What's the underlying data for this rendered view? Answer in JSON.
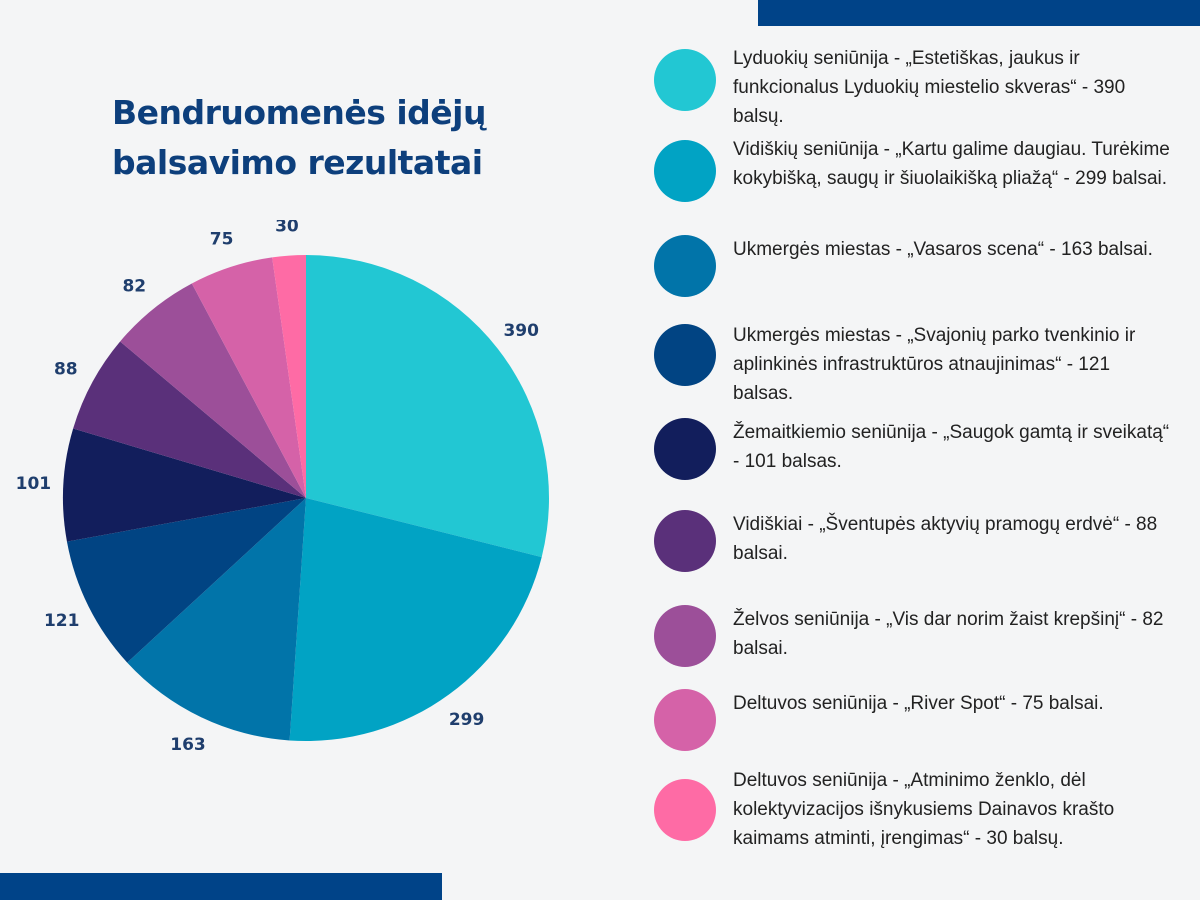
{
  "title": "Bendruomenės idėjų balsavimo rezultatai",
  "chart_data": {
    "type": "pie",
    "title": "Bendruomenės idėjų balsavimo rezultatai",
    "start_angle": "12 o'clock, clockwise",
    "slices": [
      {
        "value": 390,
        "label": "390",
        "color": "#22c7d3",
        "legend": "Lyduokių seniūnija - „Estetiškas, jaukus ir funkcionalus Lyduokių miestelio skveras“ - 390 balsų."
      },
      {
        "value": 299,
        "label": "299",
        "color": "#01a3c4",
        "legend": "Vidiškių seniūnija - „Kartu galime daugiau. Turėkime kokybišką, saugų ir šiuolaikišką pliažą“ - 299 balsai."
      },
      {
        "value": 163,
        "label": "163",
        "color": "#0174a9",
        "legend": "Ukmergės miestas - „Vasaros scena“ - 163 balsai."
      },
      {
        "value": 121,
        "label": "121",
        "color": "#014483",
        "legend": "Ukmergės miestas - „Svajonių parko tvenkinio ir aplinkinės infrastruktūros atnaujinimas“ - 121 balsas."
      },
      {
        "value": 101,
        "label": "101",
        "color": "#121e5c",
        "legend": "Žemaitkiemio seniūnija - „Saugok gamtą ir sveikatą“ - 101 balsas."
      },
      {
        "value": 88,
        "label": "88",
        "color": "#5a307a",
        "legend": "Vidiškiai - „Šventupės aktyvių pramogų erdvė“ - 88 balsai."
      },
      {
        "value": 82,
        "label": "82",
        "color": "#9c4f99",
        "legend": "Želvos seniūnija - „Vis dar norim žaist krepšinį“ - 82 balsai."
      },
      {
        "value": 75,
        "label": "75",
        "color": "#d562a8",
        "legend": "Deltuvos seniūnija - „River Spot“ - 75 balsai."
      },
      {
        "value": 30,
        "label": "30",
        "color": "#fe6ba5",
        "legend": "Deltuvos seniūnija - „Atminimo ženklo, dėl kolektyvizacijos išnykusiems Dainavos krašto kaimams atminti, įrengimas“ - 30 balsų."
      }
    ],
    "legend_placement": "right"
  }
}
